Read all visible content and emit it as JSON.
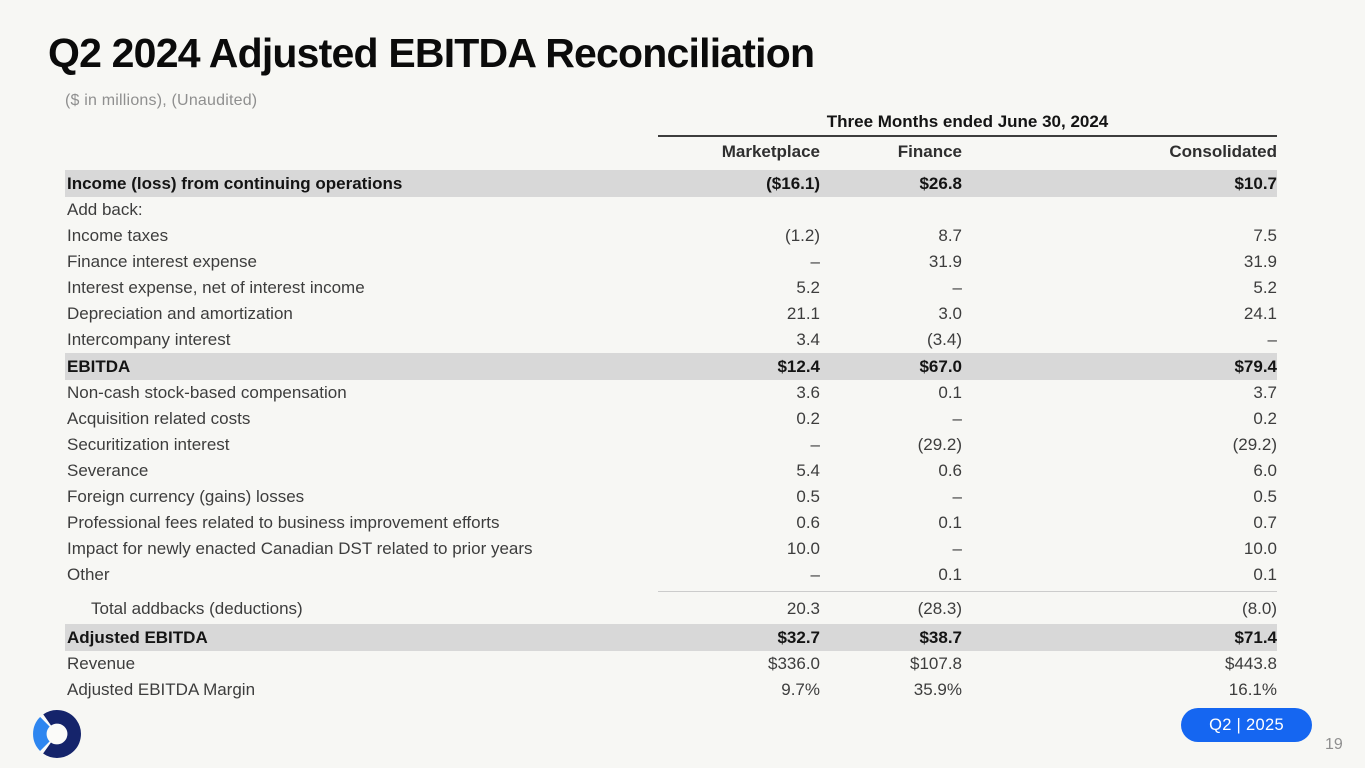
{
  "slide": {
    "title": "Q2 2024 Adjusted EBITDA Reconciliation",
    "subtitle": "($ in millions), (Unaudited)",
    "badge": "Q2 | 2025",
    "page_number": "19"
  },
  "table": {
    "period_header": "Three Months ended June 30, 2024",
    "columns": [
      "Marketplace",
      "Finance",
      "Consolidated"
    ],
    "rows": [
      {
        "label": "Income (loss) from continuing operations",
        "values": [
          "($16.1)",
          "$26.8",
          "$10.7"
        ],
        "emphasis": true
      },
      {
        "label": "Add back:",
        "values": [
          "",
          "",
          ""
        ]
      },
      {
        "label": "Income taxes",
        "values": [
          "(1.2)",
          "8.7",
          "7.5"
        ]
      },
      {
        "label": "Finance interest expense",
        "values": [
          "–",
          "31.9",
          "31.9"
        ]
      },
      {
        "label": "Interest expense, net of interest income",
        "values": [
          "5.2",
          "–",
          "5.2"
        ]
      },
      {
        "label": "Depreciation and amortization",
        "values": [
          "21.1",
          "3.0",
          "24.1"
        ]
      },
      {
        "label": "Intercompany interest",
        "values": [
          "3.4",
          "(3.4)",
          "–"
        ]
      },
      {
        "label": "EBITDA",
        "values": [
          "$12.4",
          "$67.0",
          "$79.4"
        ],
        "emphasis": true
      },
      {
        "label": "Non-cash stock-based compensation",
        "values": [
          "3.6",
          "0.1",
          "3.7"
        ]
      },
      {
        "label": "Acquisition related costs",
        "values": [
          "0.2",
          "–",
          "0.2"
        ]
      },
      {
        "label": "Securitization interest",
        "values": [
          "–",
          "(29.2)",
          "(29.2)"
        ]
      },
      {
        "label": "Severance",
        "values": [
          "5.4",
          "0.6",
          "6.0"
        ]
      },
      {
        "label": "Foreign currency (gains) losses",
        "values": [
          "0.5",
          "–",
          "0.5"
        ]
      },
      {
        "label": "Professional fees related to business improvement efforts",
        "values": [
          "0.6",
          "0.1",
          "0.7"
        ]
      },
      {
        "label": "Impact for newly enacted Canadian DST related to prior years",
        "values": [
          "10.0",
          "–",
          "10.0"
        ]
      },
      {
        "label": "Other",
        "values": [
          "–",
          "0.1",
          "0.1"
        ]
      },
      {
        "label": "Total addbacks (deductions)",
        "values": [
          "20.3",
          "(28.3)",
          "(8.0)"
        ],
        "indent": true,
        "separator_above": true,
        "tall": true
      },
      {
        "label": "Adjusted EBITDA",
        "values": [
          "$32.7",
          "$38.7",
          "$71.4"
        ],
        "emphasis": true
      },
      {
        "label": "Revenue",
        "values": [
          "$336.0",
          "$107.8",
          "$443.8"
        ]
      },
      {
        "label": "Adjusted EBITDA Margin",
        "values": [
          "9.7%",
          "35.9%",
          "16.1%"
        ]
      }
    ]
  },
  "colors": {
    "background": "#f7f7f4",
    "highlight_row_bg": "#d8d8d8",
    "badge_bg": "#1566f1",
    "badge_text": "#ffffff",
    "logo_navy": "#15246b",
    "logo_blue": "#2e86f0"
  }
}
